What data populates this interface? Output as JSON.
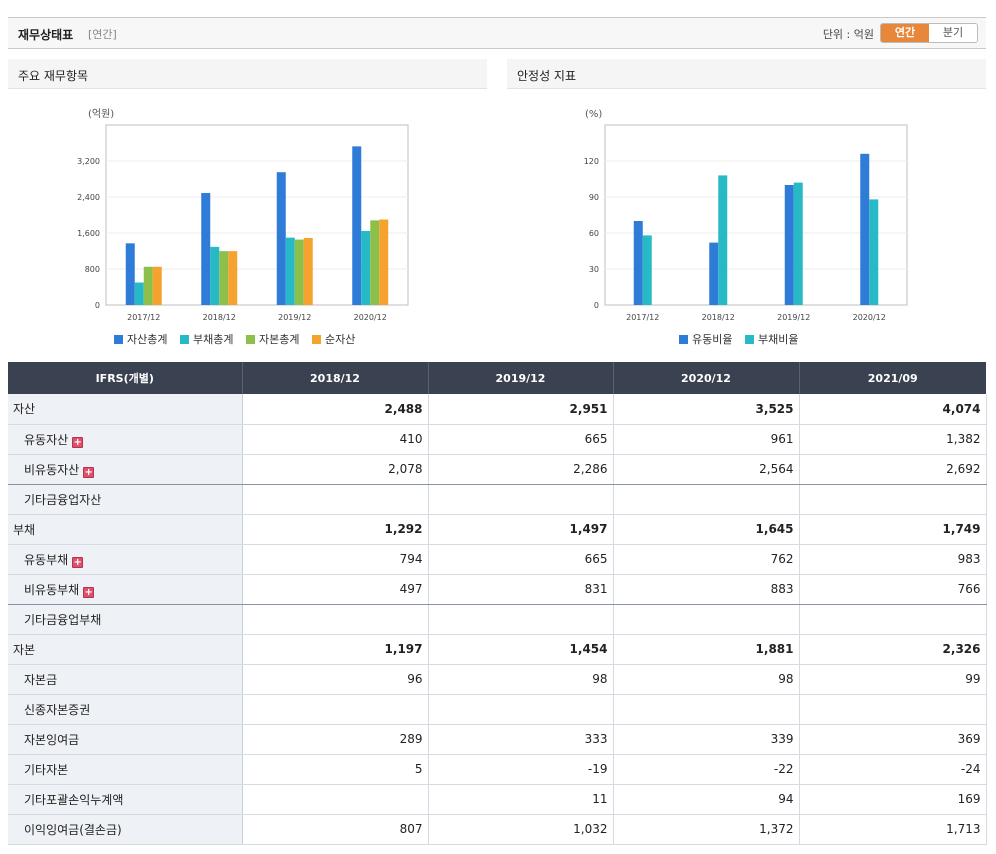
{
  "header": {
    "title": "재무상태표",
    "period": "[연간]",
    "unit_label": "단위 : 억원",
    "toggle_annual": "연간",
    "toggle_quarter": "분기"
  },
  "colors": {
    "asset": "#2e7bd8",
    "debt": "#28b9c6",
    "capital": "#8cc04b",
    "net": "#f5a22e",
    "toggle_active": "#e8873a",
    "table_header": "#3a4150",
    "negative": "#e02020"
  },
  "chart_data": [
    {
      "type": "bar",
      "title": "주요 재무항목",
      "ylabel": "(억원)",
      "categories": [
        "2017/12",
        "2018/12",
        "2019/12",
        "2020/12"
      ],
      "yticks": [
        "0",
        "800",
        "1,600",
        "2,400",
        "3,200"
      ],
      "ylim": [
        0,
        4000
      ],
      "grid": true,
      "legend_position": "bottom",
      "series": [
        {
          "name": "자산총계",
          "color": "#2e7bd8",
          "values": [
            1370,
            2488,
            2951,
            3525
          ]
        },
        {
          "name": "부채총계",
          "color": "#28b9c6",
          "values": [
            500,
            1292,
            1497,
            1645
          ]
        },
        {
          "name": "자본총계",
          "color": "#8cc04b",
          "values": [
            850,
            1197,
            1454,
            1881
          ]
        },
        {
          "name": "순자산",
          "color": "#f5a22e",
          "values": [
            850,
            1197,
            1490,
            1900
          ]
        }
      ]
    },
    {
      "type": "bar",
      "title": "안정성 지표",
      "ylabel": "(%)",
      "categories": [
        "2017/12",
        "2018/12",
        "2019/12",
        "2020/12"
      ],
      "yticks": [
        "0",
        "30",
        "60",
        "90",
        "120"
      ],
      "ylim": [
        0,
        150
      ],
      "grid": true,
      "legend_position": "bottom",
      "series": [
        {
          "name": "유동비율",
          "color": "#2e7bd8",
          "values": [
            70,
            52,
            100,
            126
          ]
        },
        {
          "name": "부채비율",
          "color": "#28b9c6",
          "values": [
            58,
            108,
            102,
            88
          ]
        }
      ]
    }
  ],
  "table": {
    "header_label": "IFRS(개별)",
    "columns": [
      "2018/12",
      "2019/12",
      "2020/12",
      "2021/09"
    ],
    "rows": [
      {
        "label": "자산",
        "values": [
          "2,488",
          "2,951",
          "3,525",
          "4,074"
        ],
        "level": 0,
        "bold": true
      },
      {
        "label": "유동자산",
        "values": [
          "410",
          "665",
          "961",
          "1,382"
        ],
        "level": 1,
        "expand": true
      },
      {
        "label": "비유동자산",
        "values": [
          "2,078",
          "2,286",
          "2,564",
          "2,692"
        ],
        "level": 1,
        "expand": true,
        "sep": true
      },
      {
        "label": "기타금융업자산",
        "values": [
          "",
          "",
          "",
          ""
        ],
        "level": 1
      },
      {
        "label": "부채",
        "values": [
          "1,292",
          "1,497",
          "1,645",
          "1,749"
        ],
        "level": 0,
        "bold": true
      },
      {
        "label": "유동부채",
        "values": [
          "794",
          "665",
          "762",
          "983"
        ],
        "level": 1,
        "expand": true
      },
      {
        "label": "비유동부채",
        "values": [
          "497",
          "831",
          "883",
          "766"
        ],
        "level": 1,
        "expand": true,
        "sep": true
      },
      {
        "label": "기타금융업부채",
        "values": [
          "",
          "",
          "",
          ""
        ],
        "level": 1
      },
      {
        "label": "자본",
        "values": [
          "1,197",
          "1,454",
          "1,881",
          "2,326"
        ],
        "level": 0,
        "bold": true
      },
      {
        "label": "자본금",
        "values": [
          "96",
          "98",
          "98",
          "99"
        ],
        "level": 1
      },
      {
        "label": "신종자본증권",
        "values": [
          "",
          "",
          "",
          ""
        ],
        "level": 1
      },
      {
        "label": "자본잉여금",
        "values": [
          "289",
          "333",
          "339",
          "369"
        ],
        "level": 1
      },
      {
        "label": "기타자본",
        "values": [
          "5",
          "-19",
          "-22",
          "-24"
        ],
        "level": 1
      },
      {
        "label": "기타포괄손익누계액",
        "values": [
          "",
          "11",
          "94",
          "169"
        ],
        "level": 1
      },
      {
        "label": "이익잉여금(결손금)",
        "values": [
          "807",
          "1,032",
          "1,372",
          "1,713"
        ],
        "level": 1
      }
    ]
  }
}
